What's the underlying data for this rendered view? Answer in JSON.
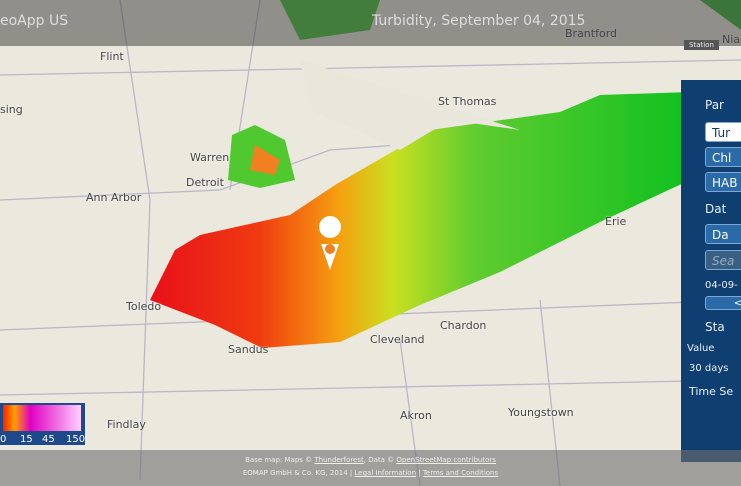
{
  "header": {
    "app_name": "eoApp US",
    "title": "Turbidity, September 04, 2015",
    "station_label": "Station"
  },
  "map": {
    "places": [
      "Flint",
      "sing",
      "Warren",
      "Detroit",
      "Ann Arbor",
      "Toledo",
      "Sandus",
      "Cleveland",
      "Chardon",
      "Akron",
      "Youngstown",
      "Findlay",
      "St Thomas",
      "Erie",
      "Brantford",
      "Niag"
    ]
  },
  "legend": {
    "ticks": [
      "0",
      "15",
      "45",
      "150"
    ]
  },
  "panel": {
    "parameters": "Par",
    "buttons": [
      "Tur",
      "Chl",
      "HAB"
    ],
    "date": "Dat",
    "date_button": "Da",
    "search": "Sea",
    "date_value": "04-09-",
    "prev": "<",
    "station": "Sta",
    "value": "Value",
    "days": "30 days",
    "time_series": "Time Se"
  },
  "footer": {
    "line1_prefix": "Base map: Maps © ",
    "line1_link1": "Thunderforest",
    "line1_mid": ", Data © ",
    "line1_link2": "OpenStreetMap contributors",
    "line2_prefix": "EOMAP GmbH & Co. KG, 2014 | ",
    "line2_link1": "Legal Information",
    "line2_sep": " | ",
    "line2_link2": "Terms and Conditions"
  }
}
